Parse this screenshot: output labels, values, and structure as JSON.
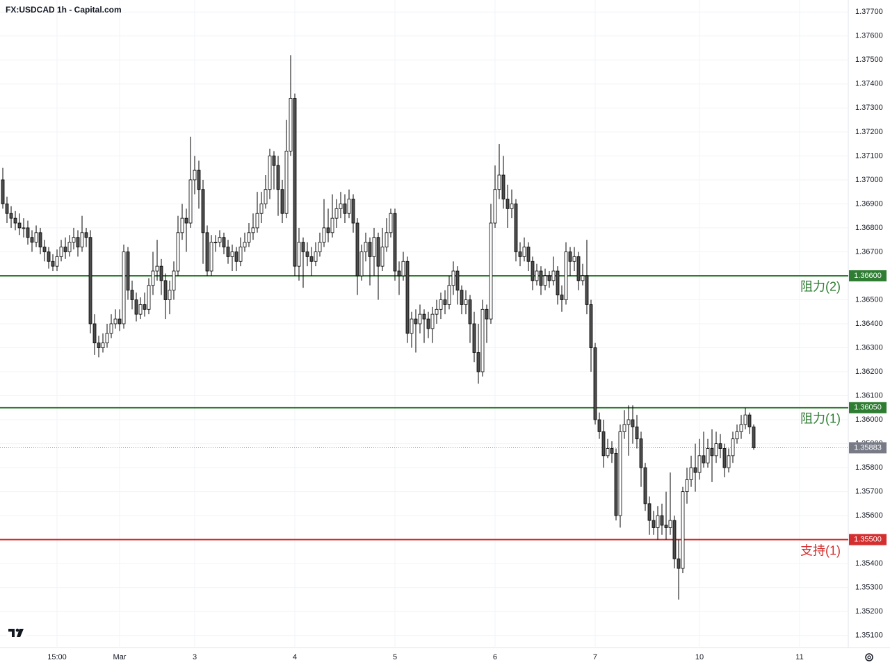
{
  "chart_data": {
    "type": "candlestick",
    "title": "FX:USDCAD 1h - Capital.com",
    "up_color": "#ffffff",
    "down_color": "#4d4d4d",
    "wick_color": "#000000",
    "grid": true,
    "ylim": [
      1.3505,
      1.3775
    ],
    "yticks": [
      {
        "value": 1.351,
        "label": "1.35100"
      },
      {
        "value": 1.352,
        "label": "1.35200"
      },
      {
        "value": 1.353,
        "label": "1.35300"
      },
      {
        "value": 1.354,
        "label": "1.35400"
      },
      {
        "value": 1.355,
        "label": "1.35500"
      },
      {
        "value": 1.356,
        "label": "1.35600"
      },
      {
        "value": 1.357,
        "label": "1.35700"
      },
      {
        "value": 1.358,
        "label": "1.35800"
      },
      {
        "value": 1.359,
        "label": "1.35900"
      },
      {
        "value": 1.36,
        "label": "1.36000"
      },
      {
        "value": 1.361,
        "label": "1.36100"
      },
      {
        "value": 1.362,
        "label": "1.36200"
      },
      {
        "value": 1.363,
        "label": "1.36300"
      },
      {
        "value": 1.364,
        "label": "1.36400"
      },
      {
        "value": 1.365,
        "label": "1.36500"
      },
      {
        "value": 1.366,
        "label": "1.36600"
      },
      {
        "value": 1.367,
        "label": "1.36700"
      },
      {
        "value": 1.368,
        "label": "1.36800"
      },
      {
        "value": 1.369,
        "label": "1.36900"
      },
      {
        "value": 1.37,
        "label": "1.37000"
      },
      {
        "value": 1.371,
        "label": "1.37100"
      },
      {
        "value": 1.372,
        "label": "1.37200"
      },
      {
        "value": 1.373,
        "label": "1.37300"
      },
      {
        "value": 1.374,
        "label": "1.37400"
      },
      {
        "value": 1.375,
        "label": "1.37500"
      },
      {
        "value": 1.376,
        "label": "1.37600"
      },
      {
        "value": 1.377,
        "label": "1.37700"
      }
    ],
    "xlim": [
      -0.67,
      202.67
    ],
    "xticks": [
      {
        "value": 13,
        "label": "15:00"
      },
      {
        "value": 28,
        "label": "Mar"
      },
      {
        "value": 46,
        "label": "3"
      },
      {
        "value": 70,
        "label": "4"
      },
      {
        "value": 94,
        "label": "5"
      },
      {
        "value": 118,
        "label": "6"
      },
      {
        "value": 142,
        "label": "7"
      },
      {
        "value": 167,
        "label": "10"
      },
      {
        "value": 191,
        "label": "11"
      }
    ],
    "levels": [
      {
        "value": 1.366,
        "label": "1.36600",
        "text": "阻力(2)",
        "color": "#2e7d32"
      },
      {
        "value": 1.3605,
        "label": "1.36050",
        "text": "阻力(1)",
        "color": "#2e7d32"
      },
      {
        "value": 1.355,
        "label": "1.35500",
        "text": "支持(1)",
        "color": "#d32f2f"
      }
    ],
    "last_price": {
      "value": 1.35883,
      "label": "1.35883"
    },
    "ohlc": [
      [
        1.37,
        1.3705,
        1.3688,
        1.369
      ],
      [
        1.369,
        1.3693,
        1.3682,
        1.3686
      ],
      [
        1.3686,
        1.3689,
        1.368,
        1.3684
      ],
      [
        1.3684,
        1.3687,
        1.3679,
        1.3682
      ],
      [
        1.3682,
        1.3686,
        1.3677,
        1.368
      ],
      [
        1.368,
        1.3684,
        1.3676,
        1.368
      ],
      [
        1.368,
        1.3683,
        1.3673,
        1.3676
      ],
      [
        1.3676,
        1.3679,
        1.367,
        1.3674
      ],
      [
        1.3674,
        1.3681,
        1.3672,
        1.3678
      ],
      [
        1.3678,
        1.368,
        1.3669,
        1.3672
      ],
      [
        1.3672,
        1.3675,
        1.3666,
        1.367
      ],
      [
        1.367,
        1.3672,
        1.3663,
        1.3666
      ],
      [
        1.3666,
        1.3669,
        1.3662,
        1.3664
      ],
      [
        1.3664,
        1.3671,
        1.3662,
        1.3668
      ],
      [
        1.3668,
        1.3675,
        1.3666,
        1.3672
      ],
      [
        1.3672,
        1.3676,
        1.3667,
        1.367
      ],
      [
        1.367,
        1.3677,
        1.3668,
        1.3674
      ],
      [
        1.3674,
        1.368,
        1.3671,
        1.3676
      ],
      [
        1.3676,
        1.3679,
        1.3668,
        1.3672
      ],
      [
        1.3672,
        1.3685,
        1.367,
        1.3678
      ],
      [
        1.3678,
        1.368,
        1.3672,
        1.3676
      ],
      [
        1.3676,
        1.3679,
        1.3636,
        1.364
      ],
      [
        1.364,
        1.3644,
        1.3627,
        1.3632
      ],
      [
        1.3632,
        1.3635,
        1.3626,
        1.363
      ],
      [
        1.363,
        1.3636,
        1.3628,
        1.3632
      ],
      [
        1.3632,
        1.364,
        1.363,
        1.3636
      ],
      [
        1.3636,
        1.3644,
        1.3634,
        1.364
      ],
      [
        1.364,
        1.3646,
        1.3638,
        1.3642
      ],
      [
        1.3642,
        1.3646,
        1.3637,
        1.364
      ],
      [
        1.364,
        1.3673,
        1.3638,
        1.367
      ],
      [
        1.367,
        1.3672,
        1.365,
        1.3654
      ],
      [
        1.3654,
        1.3658,
        1.3646,
        1.365
      ],
      [
        1.365,
        1.3653,
        1.3641,
        1.3644
      ],
      [
        1.3644,
        1.3651,
        1.3642,
        1.3648
      ],
      [
        1.3648,
        1.3653,
        1.3643,
        1.3646
      ],
      [
        1.3646,
        1.3659,
        1.3644,
        1.3656
      ],
      [
        1.3656,
        1.367,
        1.3652,
        1.3662
      ],
      [
        1.3662,
        1.3675,
        1.3658,
        1.3664
      ],
      [
        1.3664,
        1.3667,
        1.3652,
        1.3658
      ],
      [
        1.3658,
        1.3661,
        1.3642,
        1.365
      ],
      [
        1.365,
        1.3658,
        1.3644,
        1.3654
      ],
      [
        1.3654,
        1.3666,
        1.365,
        1.3662
      ],
      [
        1.3662,
        1.3685,
        1.366,
        1.3678
      ],
      [
        1.3678,
        1.369,
        1.3675,
        1.3684
      ],
      [
        1.3684,
        1.3688,
        1.367,
        1.3682
      ],
      [
        1.3682,
        1.3718,
        1.368,
        1.37
      ],
      [
        1.37,
        1.371,
        1.3694,
        1.3704
      ],
      [
        1.3704,
        1.3708,
        1.3688,
        1.3696
      ],
      [
        1.3696,
        1.37,
        1.3665,
        1.3678
      ],
      [
        1.3678,
        1.3681,
        1.366,
        1.3662
      ],
      [
        1.3662,
        1.3677,
        1.366,
        1.3674
      ],
      [
        1.3674,
        1.3677,
        1.367,
        1.3674
      ],
      [
        1.3674,
        1.3679,
        1.3672,
        1.3676
      ],
      [
        1.3676,
        1.3678,
        1.3669,
        1.3672
      ],
      [
        1.3672,
        1.3675,
        1.3665,
        1.3668
      ],
      [
        1.3668,
        1.3673,
        1.3662,
        1.367
      ],
      [
        1.367,
        1.3672,
        1.3662,
        1.3666
      ],
      [
        1.3666,
        1.3676,
        1.3664,
        1.3672
      ],
      [
        1.3672,
        1.3678,
        1.367,
        1.3674
      ],
      [
        1.3674,
        1.3682,
        1.3672,
        1.3678
      ],
      [
        1.3678,
        1.3686,
        1.3675,
        1.368
      ],
      [
        1.368,
        1.3695,
        1.3678,
        1.3686
      ],
      [
        1.3686,
        1.3695,
        1.3682,
        1.369
      ],
      [
        1.369,
        1.3702,
        1.3688,
        1.3696
      ],
      [
        1.3696,
        1.3713,
        1.3692,
        1.371
      ],
      [
        1.371,
        1.3712,
        1.3696,
        1.3706
      ],
      [
        1.3706,
        1.371,
        1.3685,
        1.3696
      ],
      [
        1.3696,
        1.37,
        1.3682,
        1.3686
      ],
      [
        1.3686,
        1.3725,
        1.3684,
        1.3712
      ],
      [
        1.3712,
        1.3752,
        1.371,
        1.3734
      ],
      [
        1.3734,
        1.3736,
        1.366,
        1.3664
      ],
      [
        1.3664,
        1.368,
        1.3658,
        1.3674
      ],
      [
        1.3674,
        1.3676,
        1.3655,
        1.367
      ],
      [
        1.367,
        1.3674,
        1.3664,
        1.3668
      ],
      [
        1.3668,
        1.3672,
        1.366,
        1.3666
      ],
      [
        1.3666,
        1.3674,
        1.3664,
        1.367
      ],
      [
        1.367,
        1.3678,
        1.3668,
        1.3674
      ],
      [
        1.3674,
        1.3692,
        1.3672,
        1.368
      ],
      [
        1.368,
        1.3688,
        1.3674,
        1.3678
      ],
      [
        1.3678,
        1.3694,
        1.3676,
        1.3684
      ],
      [
        1.3684,
        1.3692,
        1.368,
        1.3688
      ],
      [
        1.3688,
        1.3695,
        1.3684,
        1.369
      ],
      [
        1.369,
        1.3694,
        1.3682,
        1.3686
      ],
      [
        1.3686,
        1.3696,
        1.3684,
        1.3692
      ],
      [
        1.3692,
        1.3694,
        1.3678,
        1.3682
      ],
      [
        1.3682,
        1.3684,
        1.3652,
        1.366
      ],
      [
        1.366,
        1.3673,
        1.3658,
        1.367
      ],
      [
        1.367,
        1.3678,
        1.3666,
        1.3674
      ],
      [
        1.3674,
        1.3676,
        1.3656,
        1.3668
      ],
      [
        1.3668,
        1.368,
        1.366,
        1.3676
      ],
      [
        1.3676,
        1.3678,
        1.365,
        1.3664
      ],
      [
        1.3664,
        1.368,
        1.3662,
        1.3672
      ],
      [
        1.3672,
        1.3684,
        1.367,
        1.3678
      ],
      [
        1.3678,
        1.3688,
        1.3676,
        1.3686
      ],
      [
        1.3686,
        1.3688,
        1.3658,
        1.3662
      ],
      [
        1.3662,
        1.3666,
        1.3652,
        1.366
      ],
      [
        1.366,
        1.367,
        1.3658,
        1.3666
      ],
      [
        1.3666,
        1.3668,
        1.3632,
        1.3636
      ],
      [
        1.3636,
        1.3645,
        1.363,
        1.3642
      ],
      [
        1.3642,
        1.3646,
        1.3628,
        1.364
      ],
      [
        1.364,
        1.3648,
        1.3636,
        1.3644
      ],
      [
        1.3644,
        1.3646,
        1.3632,
        1.3642
      ],
      [
        1.3642,
        1.3645,
        1.3634,
        1.3638
      ],
      [
        1.3638,
        1.3647,
        1.3632,
        1.3644
      ],
      [
        1.3644,
        1.365,
        1.364,
        1.3646
      ],
      [
        1.3646,
        1.3653,
        1.3642,
        1.365
      ],
      [
        1.365,
        1.3654,
        1.3644,
        1.3648
      ],
      [
        1.3648,
        1.366,
        1.3646,
        1.3656
      ],
      [
        1.3656,
        1.3666,
        1.3652,
        1.3662
      ],
      [
        1.3662,
        1.3664,
        1.3648,
        1.3654
      ],
      [
        1.3654,
        1.3656,
        1.3644,
        1.3648
      ],
      [
        1.3648,
        1.3654,
        1.3644,
        1.365
      ],
      [
        1.365,
        1.3652,
        1.3632,
        1.364
      ],
      [
        1.364,
        1.3645,
        1.3624,
        1.3628
      ],
      [
        1.3628,
        1.364,
        1.3615,
        1.362
      ],
      [
        1.362,
        1.365,
        1.3618,
        1.3646
      ],
      [
        1.3646,
        1.3648,
        1.3632,
        1.3642
      ],
      [
        1.3642,
        1.369,
        1.364,
        1.3682
      ],
      [
        1.3682,
        1.3706,
        1.368,
        1.3696
      ],
      [
        1.3696,
        1.3715,
        1.3692,
        1.3702
      ],
      [
        1.3702,
        1.371,
        1.3688,
        1.3692
      ],
      [
        1.3692,
        1.3698,
        1.368,
        1.3688
      ],
      [
        1.3688,
        1.3696,
        1.3684,
        1.369
      ],
      [
        1.369,
        1.3692,
        1.3666,
        1.367
      ],
      [
        1.367,
        1.3674,
        1.3664,
        1.3668
      ],
      [
        1.3668,
        1.3676,
        1.3666,
        1.3672
      ],
      [
        1.3672,
        1.3674,
        1.3662,
        1.3666
      ],
      [
        1.3666,
        1.3668,
        1.3654,
        1.3658
      ],
      [
        1.3658,
        1.3665,
        1.3656,
        1.3662
      ],
      [
        1.3662,
        1.3664,
        1.3652,
        1.3656
      ],
      [
        1.3656,
        1.3663,
        1.3654,
        1.366
      ],
      [
        1.366,
        1.3662,
        1.3655,
        1.3658
      ],
      [
        1.3658,
        1.3668,
        1.3656,
        1.3662
      ],
      [
        1.3662,
        1.3664,
        1.3648,
        1.3652
      ],
      [
        1.3652,
        1.3656,
        1.3645,
        1.365
      ],
      [
        1.365,
        1.3674,
        1.3648,
        1.367
      ],
      [
        1.367,
        1.3672,
        1.366,
        1.3666
      ],
      [
        1.3666,
        1.3672,
        1.3662,
        1.3668
      ],
      [
        1.3668,
        1.367,
        1.3654,
        1.3658
      ],
      [
        1.3658,
        1.3665,
        1.3656,
        1.366
      ],
      [
        1.366,
        1.3675,
        1.3644,
        1.3648
      ],
      [
        1.3648,
        1.365,
        1.362,
        1.363
      ],
      [
        1.363,
        1.3632,
        1.3598,
        1.36
      ],
      [
        1.36,
        1.3603,
        1.3592,
        1.3595
      ],
      [
        1.3595,
        1.36,
        1.358,
        1.3585
      ],
      [
        1.3585,
        1.3592,
        1.3584,
        1.3588
      ],
      [
        1.3588,
        1.3591,
        1.3582,
        1.3586
      ],
      [
        1.3586,
        1.3588,
        1.3558,
        1.356
      ],
      [
        1.356,
        1.3598,
        1.3555,
        1.3595
      ],
      [
        1.3595,
        1.3604,
        1.3592,
        1.3598
      ],
      [
        1.3598,
        1.3606,
        1.3585,
        1.36
      ],
      [
        1.36,
        1.3606,
        1.359,
        1.3597
      ],
      [
        1.3597,
        1.3602,
        1.3588,
        1.3592
      ],
      [
        1.3592,
        1.3595,
        1.3572,
        1.358
      ],
      [
        1.358,
        1.3582,
        1.3562,
        1.3565
      ],
      [
        1.3565,
        1.3568,
        1.3552,
        1.3558
      ],
      [
        1.3558,
        1.3562,
        1.3552,
        1.3555
      ],
      [
        1.3555,
        1.3564,
        1.355,
        1.356
      ],
      [
        1.356,
        1.3565,
        1.3552,
        1.3556
      ],
      [
        1.3556,
        1.357,
        1.355,
        1.3555
      ],
      [
        1.3555,
        1.3578,
        1.3552,
        1.3558
      ],
      [
        1.3558,
        1.356,
        1.3538,
        1.3542
      ],
      [
        1.3542,
        1.355,
        1.3525,
        1.3538
      ],
      [
        1.3538,
        1.3572,
        1.3536,
        1.357
      ],
      [
        1.357,
        1.358,
        1.3565,
        1.3575
      ],
      [
        1.3575,
        1.3585,
        1.3572,
        1.358
      ],
      [
        1.358,
        1.359,
        1.357,
        1.3578
      ],
      [
        1.3578,
        1.3592,
        1.3575,
        1.3585
      ],
      [
        1.3585,
        1.3595,
        1.358,
        1.3582
      ],
      [
        1.3582,
        1.3592,
        1.358,
        1.3588
      ],
      [
        1.3588,
        1.3596,
        1.3574,
        1.3585
      ],
      [
        1.3585,
        1.3595,
        1.3582,
        1.359
      ],
      [
        1.359,
        1.3594,
        1.3584,
        1.3588
      ],
      [
        1.3588,
        1.359,
        1.3576,
        1.358
      ],
      [
        1.358,
        1.3588,
        1.3578,
        1.3585
      ],
      [
        1.3585,
        1.3595,
        1.3582,
        1.3592
      ],
      [
        1.3592,
        1.3598,
        1.359,
        1.3595
      ],
      [
        1.3595,
        1.3602,
        1.3592,
        1.3598
      ],
      [
        1.3598,
        1.3605,
        1.3596,
        1.3602
      ],
      [
        1.3602,
        1.3603,
        1.3594,
        1.3597
      ],
      [
        1.3597,
        1.3598,
        1.35875,
        1.35883
      ]
    ]
  }
}
